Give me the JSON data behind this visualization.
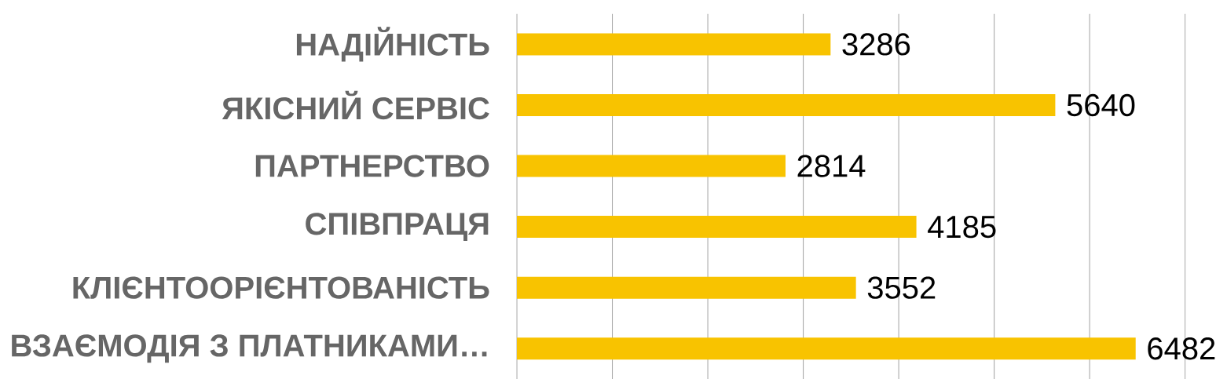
{
  "chart_data": {
    "type": "bar",
    "orientation": "horizontal",
    "categories": [
      "НАДІЙНІСТЬ",
      "ЯКІСНИЙ СЕРВІС",
      "ПАРТНЕРСТВО",
      "СПІВПРАЦЯ",
      "КЛІЄНТООРІЄНТОВАНІСТЬ",
      "ВЗАЄМОДІЯ З ПЛАТНИКАМИ…"
    ],
    "values": [
      3286,
      5640,
      2814,
      4185,
      3552,
      6482
    ],
    "color": "#f8c300",
    "data_labels": true,
    "grid": "x",
    "tick_labels": "y",
    "xlim": [
      0,
      7000
    ],
    "xticks": [
      {
        "value": 0,
        "label": null
      },
      {
        "value": 1000,
        "label": null
      },
      {
        "value": 2000,
        "label": null
      },
      {
        "value": 3000,
        "label": null
      },
      {
        "value": 4000,
        "label": null
      },
      {
        "value": 5000,
        "label": null
      },
      {
        "value": 6000,
        "label": null
      },
      {
        "value": 7000,
        "label": null
      }
    ]
  }
}
